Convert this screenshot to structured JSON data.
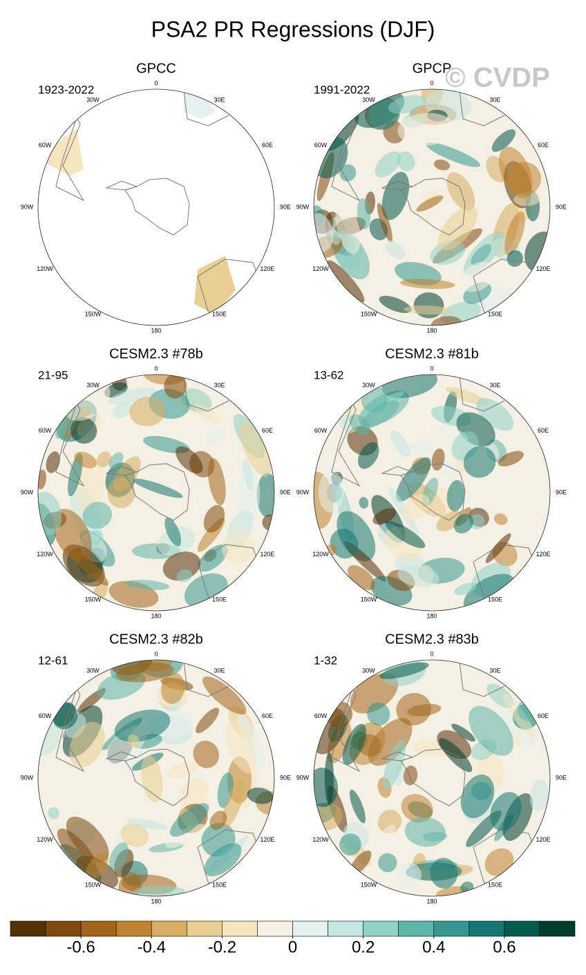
{
  "title": "PSA2 PR Regressions (DJF)",
  "watermark": "© CVDP",
  "longitude_labels": [
    "0",
    "30E",
    "60E",
    "90E",
    "120E",
    "150E",
    "180",
    "150W",
    "120W",
    "90W",
    "60W",
    "30W"
  ],
  "panels": [
    {
      "title": "GPCC",
      "subtitle": "1923-2022"
    },
    {
      "title": "GPCP",
      "subtitle": "1991-2022"
    },
    {
      "title": "CESM2.3 #78b",
      "subtitle": "21-95"
    },
    {
      "title": "CESM2.3 #81b",
      "subtitle": "13-62"
    },
    {
      "title": "CESM2.3 #82b",
      "subtitle": "12-61"
    },
    {
      "title": "CESM2.3 #83b",
      "subtitle": "1-32"
    }
  ],
  "colorbar": {
    "colors": [
      "#543005",
      "#7f4a0e",
      "#a0651a",
      "#bd8432",
      "#d6ad63",
      "#e8cf93",
      "#f5e6bf",
      "#f5f0e4",
      "#e3f1ef",
      "#c4e8e2",
      "#8fd2c6",
      "#5fb5a8",
      "#35978f",
      "#16776f",
      "#035a4d",
      "#003c30"
    ],
    "lim": [
      -0.8,
      0.8
    ],
    "ticks": [
      -0.6,
      -0.4,
      -0.2,
      0,
      0.2,
      0.4,
      0.6
    ]
  }
}
